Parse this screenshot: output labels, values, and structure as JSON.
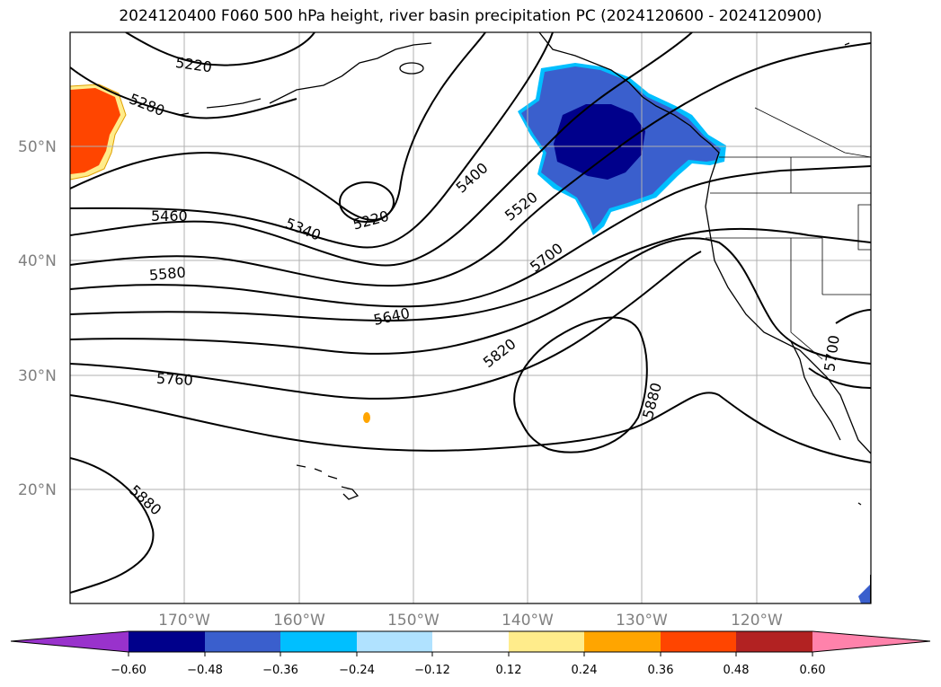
{
  "title": "2024120400 F060 500 hPa height, river basin precipitation PC (2024120600 - 2024120900)",
  "lat_labels": [
    "50°N",
    "40°N",
    "30°N",
    "20°N"
  ],
  "lon_labels": [
    "170°W",
    "160°W",
    "150°W",
    "140°W",
    "130°W",
    "120°W"
  ],
  "colorbar": {
    "tick_labels": [
      "−0.60",
      "−0.48",
      "−0.36",
      "−0.24",
      "−0.12",
      "0.12",
      "0.24",
      "0.36",
      "0.48",
      "0.60"
    ],
    "colors": [
      "#9932cc",
      "#00008b",
      "#3a5fcd",
      "#00bfff",
      "#b0e2ff",
      "#ffffff",
      "#ffec8b",
      "#ffa500",
      "#ff4500",
      "#b22222",
      "#ff82ab"
    ]
  },
  "contour_labels": [
    "5220",
    "5280",
    "5220",
    "5340",
    "5400",
    "5460",
    "5520",
    "5580",
    "5640",
    "5700",
    "5760",
    "5820",
    "5880",
    "5880",
    "5700"
  ],
  "chart_data": {
    "type": "map",
    "fields": [
      "500 hPa height contours",
      "river basin precipitation PC (shaded)"
    ],
    "contour_values": [
      5220,
      5280,
      5340,
      5400,
      5460,
      5520,
      5580,
      5640,
      5700,
      5760,
      5820,
      5880
    ],
    "colorbar_levels": [
      -0.6,
      -0.48,
      -0.36,
      -0.24,
      -0.12,
      0.12,
      0.24,
      0.36,
      0.48,
      0.6
    ],
    "lat_range": [
      10,
      60
    ],
    "lon_range": [
      -180,
      -110
    ],
    "grid": true
  }
}
